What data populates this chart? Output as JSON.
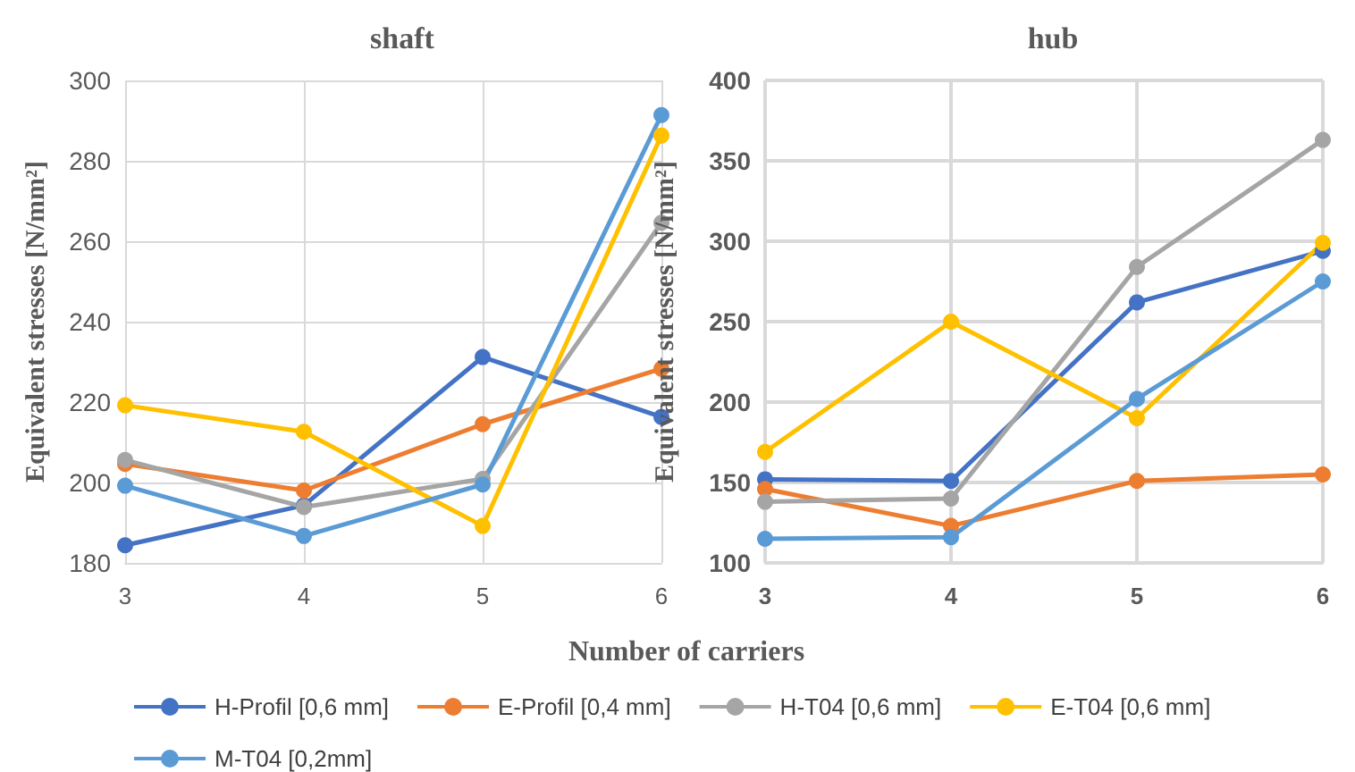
{
  "chart_data": [
    {
      "type": "line",
      "title": "shaft",
      "xlabel": "Number of carriers",
      "ylabel": "Equivalent stresses [N/mm²]",
      "categories": [
        "3",
        "4",
        "5",
        "6"
      ],
      "ylim": [
        180,
        300
      ],
      "yticks": [
        180,
        200,
        220,
        240,
        260,
        280,
        300
      ],
      "grid": true,
      "legend": "bottom",
      "marker": "circle",
      "line_style": "solid",
      "series": [
        {
          "name": "H-Profil [0,6 mm]",
          "color": "#4472c4",
          "values": [
            184.4,
            194.3,
            231.2,
            216.3
          ]
        },
        {
          "name": "E-Profil [0,4 mm]",
          "color": "#ed7d31",
          "values": [
            204.6,
            198,
            214.5,
            228.3
          ]
        },
        {
          "name": "H-T04 [0,6 mm]",
          "color": "#a5a5a5",
          "values": [
            205.6,
            193.9,
            200.9,
            264.6
          ]
        },
        {
          "name": "E-T04 [0,6 mm]",
          "color": "#ffc000",
          "values": [
            219.2,
            212.6,
            189.2,
            286.3
          ]
        },
        {
          "name": "M-T04 [0,2mm]",
          "color": "#5b9bd5",
          "values": [
            199.2,
            186.7,
            199.5,
            291.4
          ]
        }
      ]
    },
    {
      "type": "line",
      "title": "hub",
      "ylabel": "Equivalent stresses [N/mm²]",
      "categories": [
        "3",
        "4",
        "5",
        "6"
      ],
      "ylim": [
        100,
        400
      ],
      "yticks": [
        100,
        150,
        200,
        250,
        300,
        350,
        400
      ],
      "grid": true,
      "marker": "circle",
      "line_style": "solid",
      "series": [
        {
          "color": "#4472c4",
          "values": [
            152,
            151,
            262,
            294
          ]
        },
        {
          "color": "#ed7d31",
          "values": [
            146,
            123,
            151,
            155
          ]
        },
        {
          "color": "#a5a5a5",
          "values": [
            138,
            140,
            284,
            363
          ]
        },
        {
          "color": "#ffc000",
          "values": [
            169,
            250,
            190,
            299
          ]
        },
        {
          "color": "#5b9bd5",
          "values": [
            115,
            116,
            202,
            275
          ]
        }
      ]
    }
  ]
}
